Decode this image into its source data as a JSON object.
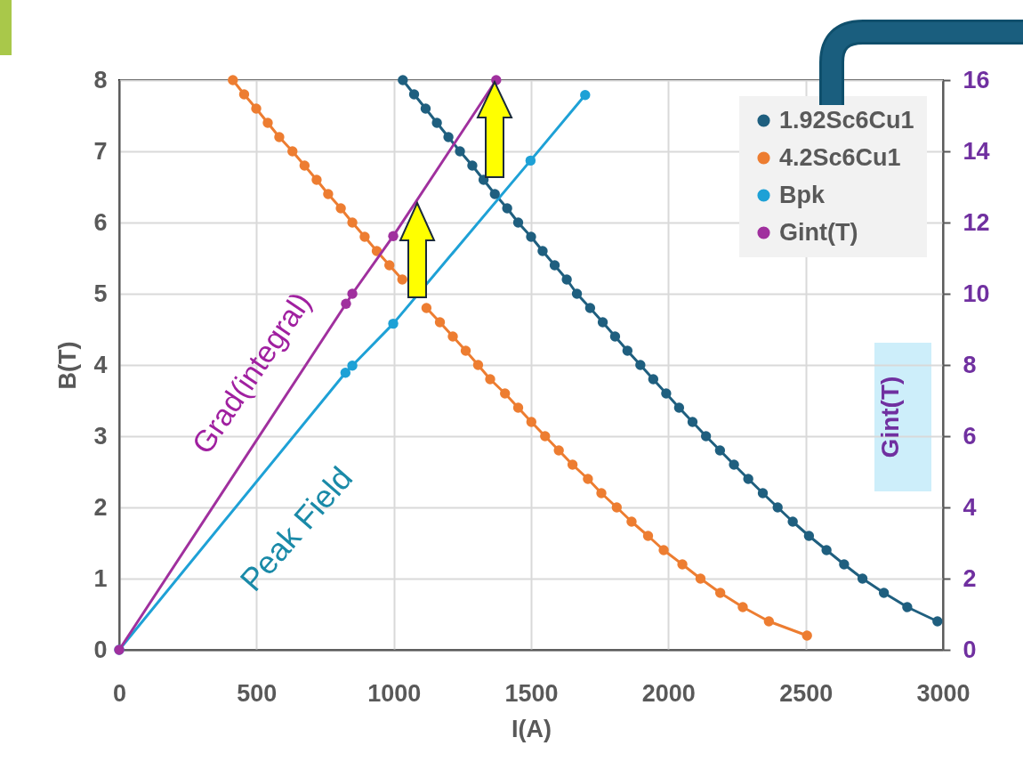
{
  "chart_data": {
    "type": "line",
    "xlabel": "I(A)",
    "ylabel": "B(T)",
    "y2label": "Gint(T)",
    "xlim": [
      0,
      3000
    ],
    "xticks": [
      0,
      500,
      1000,
      1500,
      2000,
      2500,
      3000
    ],
    "ylim": [
      0,
      8
    ],
    "yticks": [
      0,
      1,
      2,
      3,
      4,
      5,
      6,
      7,
      8
    ],
    "y2lim": [
      0,
      16
    ],
    "y2ticks": [
      0,
      2,
      4,
      6,
      8,
      10,
      12,
      14,
      16
    ],
    "grid": true,
    "legend": "top right",
    "marker": "circle",
    "line_style": "solid",
    "annotations": [
      "Grad(integral)",
      "Peak Field"
    ],
    "series": [
      {
        "name": "1.92Sc6Cu1",
        "color": "#1f5f7f",
        "x": [
          1033,
          1074,
          1116,
          1157,
          1199,
          1241,
          1286,
          1327,
          1368,
          1413,
          1453,
          1500,
          1542,
          1586,
          1630,
          1667,
          1715,
          1761,
          1806,
          1851,
          1898,
          1945,
          1992,
          2039,
          2088,
          2137,
          2188,
          2239,
          2291,
          2344,
          2398,
          2453,
          2512,
          2576,
          2640,
          2707,
          2785,
          2870,
          2980
        ],
        "values": [
          8,
          7.8,
          7.6,
          7.4,
          7.2,
          7,
          6.8,
          6.6,
          6.4,
          6.2,
          6,
          5.8,
          5.6,
          5.4,
          5.2,
          5,
          4.8,
          4.6,
          4.4,
          4.2,
          4,
          3.8,
          3.6,
          3.4,
          3.2,
          3,
          2.8,
          2.6,
          2.4,
          2.2,
          2,
          1.8,
          1.6,
          1.4,
          1.2,
          1,
          0.8,
          0.6,
          0.4
        ]
      },
      {
        "name": "4.2Sc6Cu1",
        "color": "#ed7d31",
        "x": [
          414,
          455,
          499,
          541,
          583,
          631,
          675,
          719,
          761,
          807,
          849,
          894,
          938,
          984,
          1031,
          1075,
          1119,
          1168,
          1215,
          1262,
          1307,
          1351,
          1405,
          1453,
          1501,
          1551,
          1601,
          1651,
          1707,
          1756,
          1812,
          1866,
          1926,
          1983,
          2051,
          2117,
          2189,
          2271,
          2366,
          2505
        ],
        "values": [
          8,
          7.8,
          7.6,
          7.4,
          7.2,
          7,
          6.8,
          6.6,
          6.4,
          6.2,
          6,
          5.8,
          5.6,
          5.4,
          5.2,
          null,
          4.8,
          4.6,
          4.4,
          4.2,
          4,
          3.8,
          3.6,
          3.4,
          3.2,
          3,
          2.8,
          2.6,
          2.4,
          2.2,
          2,
          1.8,
          1.6,
          1.4,
          1.2,
          1,
          0.8,
          0.6,
          0.4,
          0.2
        ]
      },
      {
        "name": "Bpk",
        "color": "#1ea1d6",
        "x": [
          0,
          824,
          849,
          998,
          1498,
          1697
        ],
        "values": [
          0,
          3.89,
          3.99,
          4.58,
          6.87,
          7.79
        ]
      },
      {
        "name": "Gint(T)",
        "color": "#a0309e",
        "axis": "y2",
        "x": [
          0,
          826,
          849,
          998,
          1373
        ],
        "values": [
          0,
          9.72,
          10,
          11.62,
          16
        ]
      }
    ]
  }
}
